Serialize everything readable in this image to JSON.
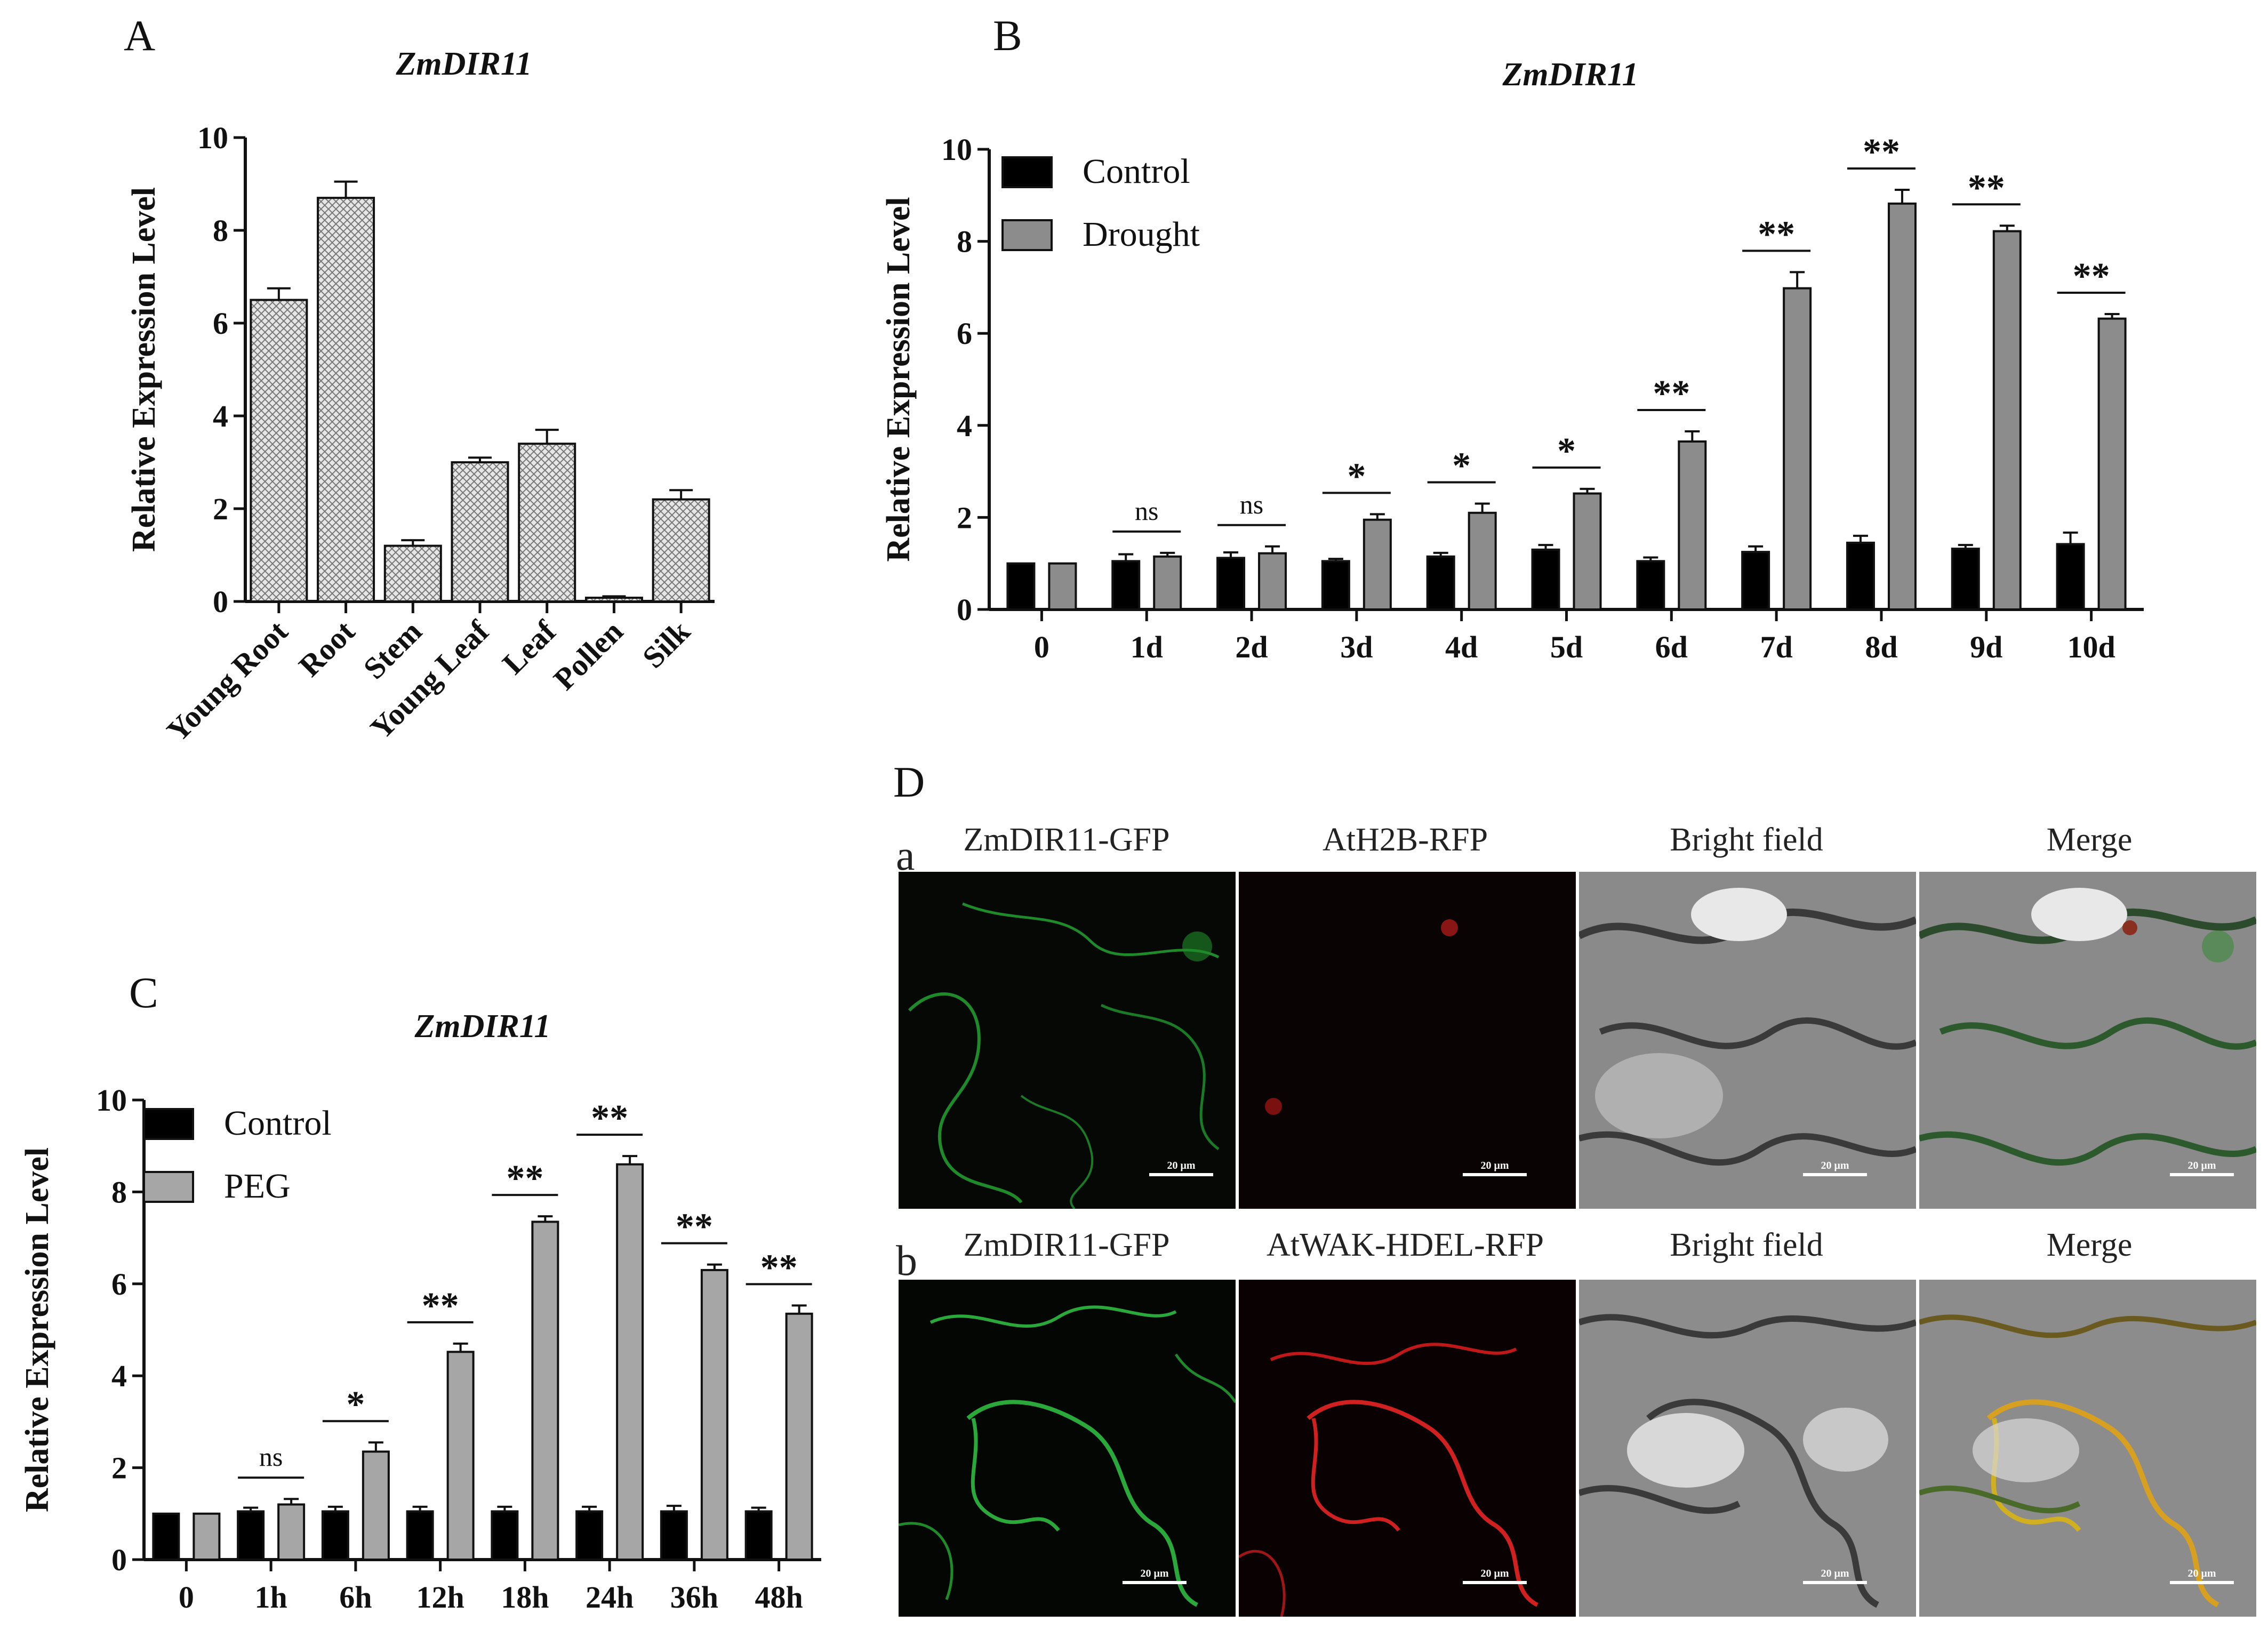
{
  "panels": {
    "A": "A",
    "B": "B",
    "C": "C",
    "D": "D"
  },
  "chart_data": [
    {
      "id": "A",
      "type": "bar",
      "title": "ZmDIR11",
      "ylabel": "Relative Expression Level",
      "ylim": [
        0,
        10
      ],
      "yticks": [
        0,
        2,
        4,
        6,
        8,
        10
      ],
      "categories": [
        "Young Root",
        "Root",
        "Stem",
        "Young Leaf",
        "Leaf",
        "Pollen",
        "Silk"
      ],
      "values": [
        6.5,
        8.7,
        1.2,
        3.0,
        3.4,
        0.08,
        2.2
      ],
      "errors": [
        0.25,
        0.35,
        0.12,
        0.1,
        0.3,
        0.03,
        0.2
      ],
      "fill": "crosshatch-gray"
    },
    {
      "id": "B",
      "type": "bar",
      "title": "ZmDIR11",
      "ylabel": "Relative Expression Level",
      "ylim": [
        0,
        10
      ],
      "yticks": [
        0,
        2,
        4,
        6,
        8,
        10
      ],
      "legend_position": "top-left",
      "categories": [
        "0",
        "1d",
        "2d",
        "3d",
        "4d",
        "5d",
        "6d",
        "7d",
        "8d",
        "9d",
        "10d"
      ],
      "series": [
        {
          "name": "Control",
          "color": "#000000",
          "values": [
            1.0,
            1.05,
            1.12,
            1.05,
            1.15,
            1.3,
            1.05,
            1.25,
            1.45,
            1.32,
            1.42
          ],
          "errors": [
            0.0,
            0.15,
            0.12,
            0.05,
            0.08,
            0.1,
            0.08,
            0.12,
            0.15,
            0.08,
            0.25
          ]
        },
        {
          "name": "Drought",
          "color": "#8c8c8c",
          "values": [
            1.0,
            1.15,
            1.22,
            1.95,
            2.1,
            2.52,
            3.65,
            6.98,
            8.82,
            8.22,
            6.32
          ],
          "errors": [
            0.0,
            0.08,
            0.15,
            0.12,
            0.2,
            0.1,
            0.22,
            0.35,
            0.3,
            0.12,
            0.1
          ]
        }
      ],
      "significance": [
        "",
        "ns",
        "ns",
        "*",
        "*",
        "*",
        "**",
        "**",
        "**",
        "**",
        "**"
      ]
    },
    {
      "id": "C",
      "type": "bar",
      "title": "ZmDIR11",
      "ylabel": "Relative Expression Level",
      "ylim": [
        0,
        10
      ],
      "yticks": [
        0,
        2,
        4,
        6,
        8,
        10
      ],
      "legend_position": "top-left",
      "categories": [
        "0",
        "1h",
        "6h",
        "12h",
        "18h",
        "24h",
        "36h",
        "48h"
      ],
      "series": [
        {
          "name": "Control",
          "color": "#000000",
          "values": [
            1.0,
            1.05,
            1.05,
            1.05,
            1.05,
            1.05,
            1.05,
            1.05
          ],
          "errors": [
            0.0,
            0.08,
            0.1,
            0.1,
            0.1,
            0.1,
            0.12,
            0.08
          ]
        },
        {
          "name": "PEG",
          "color": "#a6a6a6",
          "values": [
            1.0,
            1.2,
            2.35,
            4.52,
            7.35,
            8.6,
            6.3,
            5.35
          ],
          "errors": [
            0.0,
            0.12,
            0.2,
            0.18,
            0.12,
            0.18,
            0.12,
            0.18
          ]
        }
      ],
      "significance": [
        "",
        "ns",
        "*",
        "**",
        "**",
        "**",
        "**",
        "**"
      ]
    }
  ],
  "microscopy": {
    "rows": [
      {
        "letter": "a",
        "titles": [
          "ZmDIR11-GFP",
          "AtH2B-RFP",
          "Bright field",
          "Merge"
        ]
      },
      {
        "letter": "b",
        "titles": [
          "ZmDIR11-GFP",
          "AtWAK-HDEL-RFP",
          "Bright field",
          "Merge"
        ]
      }
    ],
    "scale_label": "20 μm"
  }
}
